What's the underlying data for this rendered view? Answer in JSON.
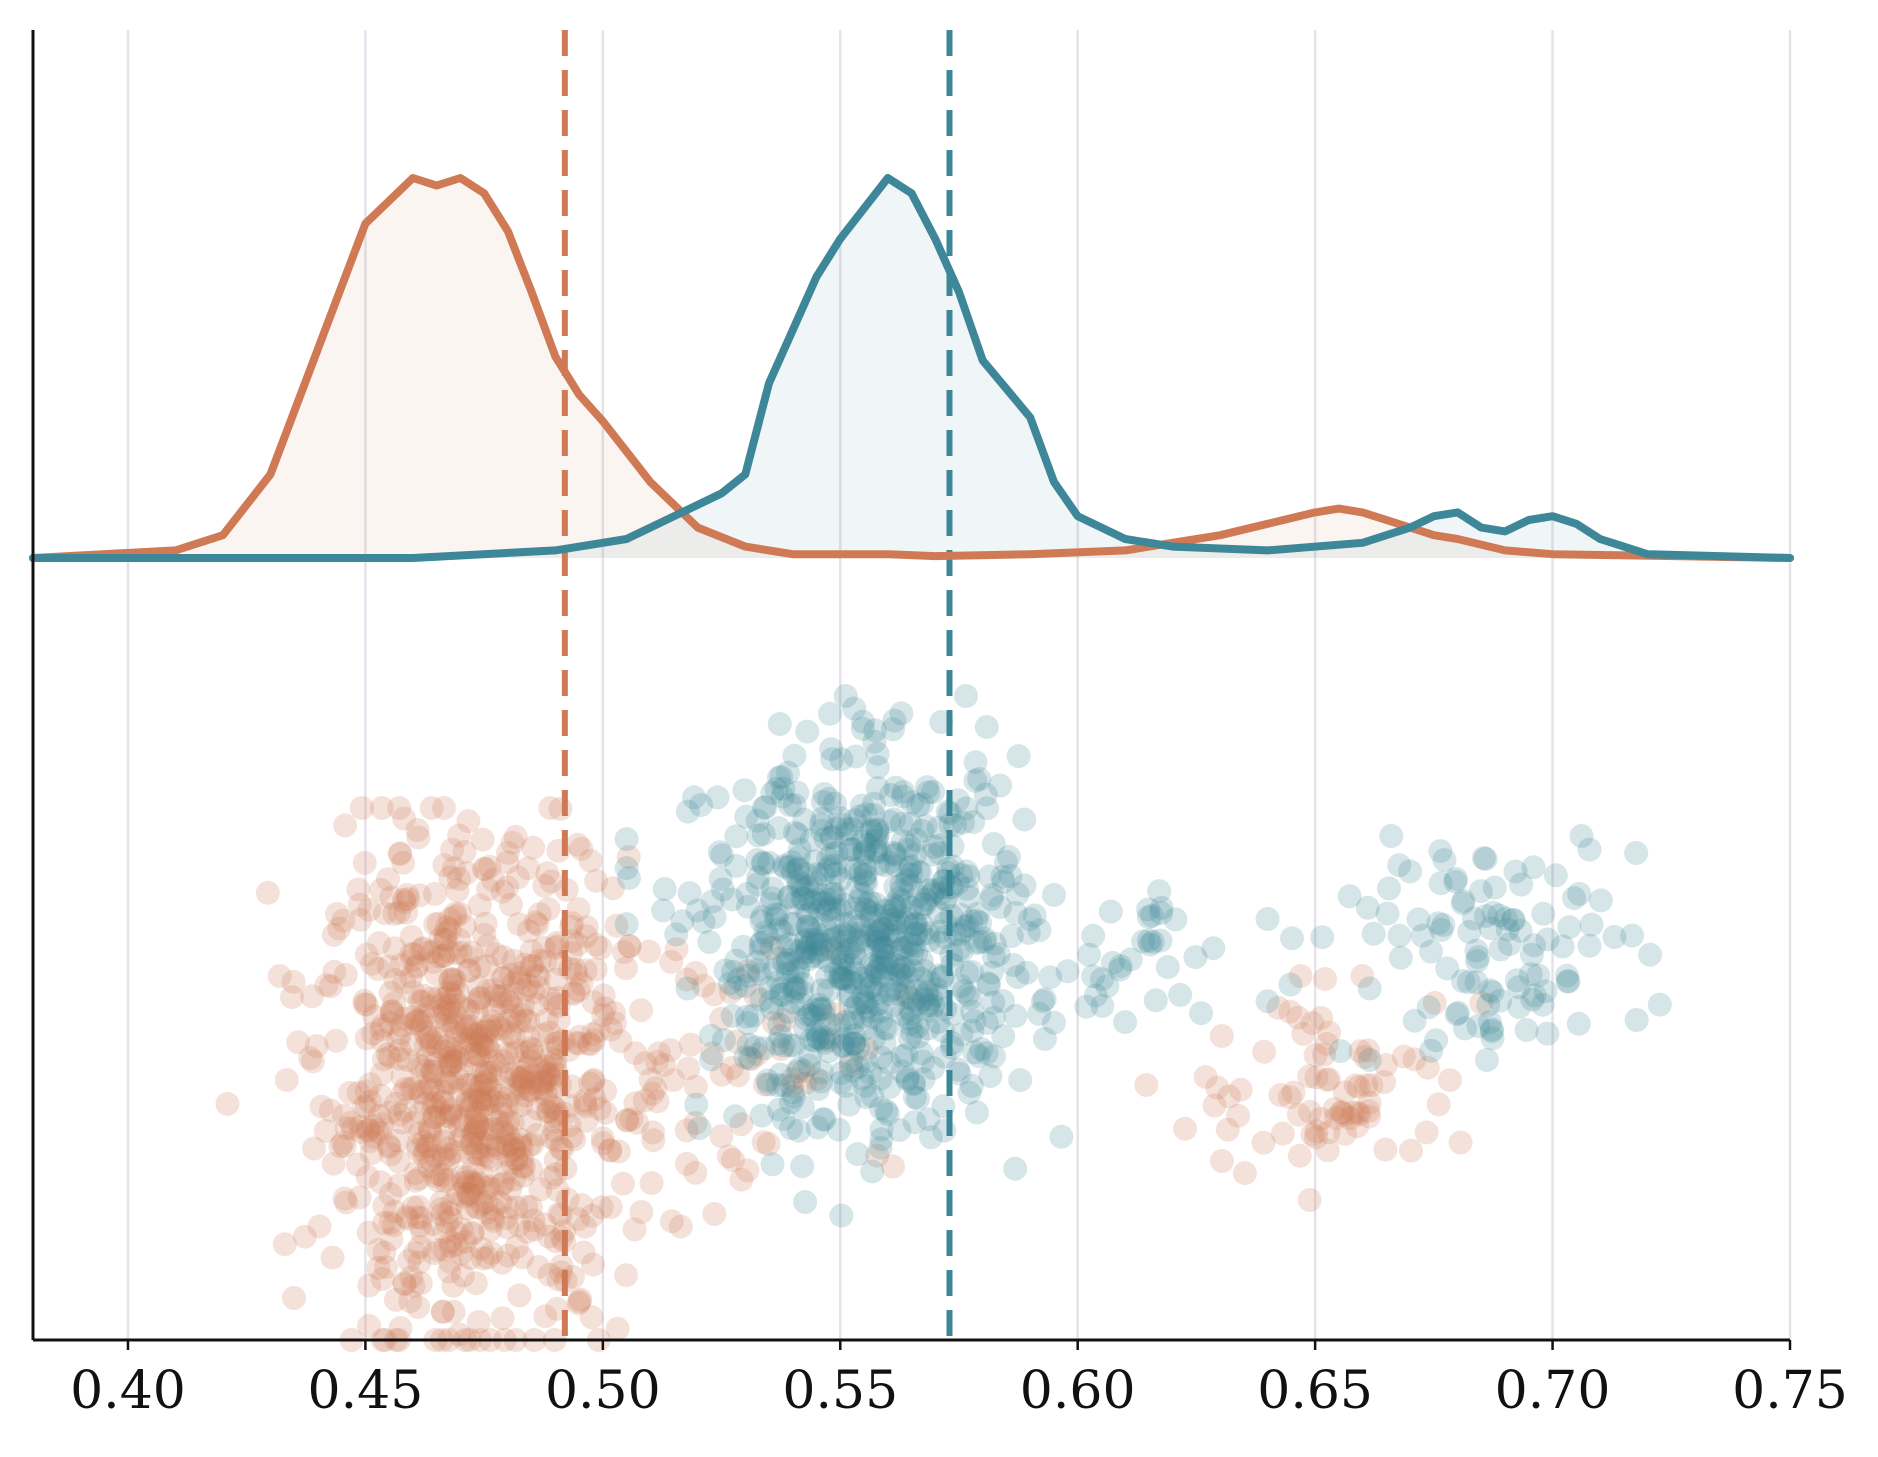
{
  "chart_data": {
    "type": "scatter",
    "title": "",
    "xlabel": "",
    "ylabel": "",
    "xlim": [
      0.38,
      0.75
    ],
    "x_ticks": [
      "0.40",
      "0.45",
      "0.50",
      "0.55",
      "0.60",
      "0.65",
      "0.70",
      "0.75"
    ],
    "x_tick_values": [
      0.4,
      0.45,
      0.5,
      0.55,
      0.6,
      0.65,
      0.7,
      0.75
    ],
    "grid": "vertical",
    "legend": "none",
    "colors": {
      "orange": "#cf7a55",
      "teal": "#3e8798",
      "grid": "#e6e2ea",
      "axis": "#111111"
    },
    "series": [
      {
        "color_key": "orange",
        "mean_line_x": 0.492,
        "density": {
          "x": [
            0.38,
            0.41,
            0.42,
            0.43,
            0.44,
            0.45,
            0.46,
            0.465,
            0.47,
            0.475,
            0.48,
            0.485,
            0.49,
            0.495,
            0.5,
            0.505,
            0.51,
            0.52,
            0.53,
            0.54,
            0.55,
            0.56,
            0.57,
            0.59,
            0.61,
            0.63,
            0.64,
            0.65,
            0.655,
            0.66,
            0.67,
            0.675,
            0.68,
            0.69,
            0.7,
            0.75
          ],
          "y": [
            0.0,
            0.02,
            0.06,
            0.22,
            0.55,
            0.88,
            1.0,
            0.98,
            1.0,
            0.96,
            0.86,
            0.7,
            0.53,
            0.43,
            0.36,
            0.28,
            0.2,
            0.08,
            0.03,
            0.01,
            0.01,
            0.01,
            0.005,
            0.01,
            0.02,
            0.06,
            0.09,
            0.12,
            0.13,
            0.12,
            0.08,
            0.06,
            0.05,
            0.02,
            0.01,
            0.0
          ]
        },
        "clusters": [
          {
            "cx": 0.473,
            "cy": 0.36,
            "sx": 0.016,
            "sy": 0.17,
            "n": 860,
            "x_range": [
              0.405,
              0.53
            ],
            "y_range": [
              0.0,
              0.76
            ]
          },
          {
            "cx": 0.522,
            "cy": 0.41,
            "sx": 0.02,
            "sy": 0.09,
            "n": 70,
            "x_range": [
              0.49,
              0.6
            ],
            "y_range": [
              0.18,
              0.56
            ]
          },
          {
            "cx": 0.655,
            "cy": 0.36,
            "sx": 0.015,
            "sy": 0.07,
            "n": 80,
            "x_range": [
              0.61,
              0.685
            ],
            "y_range": [
              0.2,
              0.52
            ]
          }
        ]
      },
      {
        "color_key": "teal",
        "mean_line_x": 0.573,
        "density": {
          "x": [
            0.38,
            0.42,
            0.46,
            0.49,
            0.505,
            0.515,
            0.525,
            0.53,
            0.535,
            0.54,
            0.545,
            0.55,
            0.555,
            0.56,
            0.565,
            0.57,
            0.575,
            0.58,
            0.59,
            0.595,
            0.6,
            0.61,
            0.62,
            0.64,
            0.66,
            0.67,
            0.675,
            0.68,
            0.685,
            0.69,
            0.695,
            0.7,
            0.705,
            0.71,
            0.715,
            0.72,
            0.75
          ],
          "y": [
            0.0,
            0.0,
            0.0,
            0.02,
            0.05,
            0.11,
            0.17,
            0.22,
            0.46,
            0.6,
            0.74,
            0.84,
            0.92,
            1.0,
            0.96,
            0.84,
            0.7,
            0.52,
            0.37,
            0.2,
            0.11,
            0.05,
            0.03,
            0.02,
            0.04,
            0.08,
            0.11,
            0.12,
            0.08,
            0.07,
            0.1,
            0.11,
            0.09,
            0.05,
            0.03,
            0.01,
            0.0
          ]
        },
        "clusters": [
          {
            "cx": 0.556,
            "cy": 0.56,
            "sx": 0.017,
            "sy": 0.13,
            "n": 760,
            "x_range": [
              0.505,
              0.615
            ],
            "y_range": [
              0.14,
              0.92
            ]
          },
          {
            "cx": 0.612,
            "cy": 0.56,
            "sx": 0.008,
            "sy": 0.06,
            "n": 30,
            "x_range": [
              0.595,
              0.63
            ],
            "y_range": [
              0.42,
              0.66
            ]
          },
          {
            "cx": 0.685,
            "cy": 0.56,
            "sx": 0.017,
            "sy": 0.08,
            "n": 110,
            "x_range": [
              0.64,
              0.73
            ],
            "y_range": [
              0.4,
              0.72
            ]
          }
        ]
      }
    ]
  }
}
